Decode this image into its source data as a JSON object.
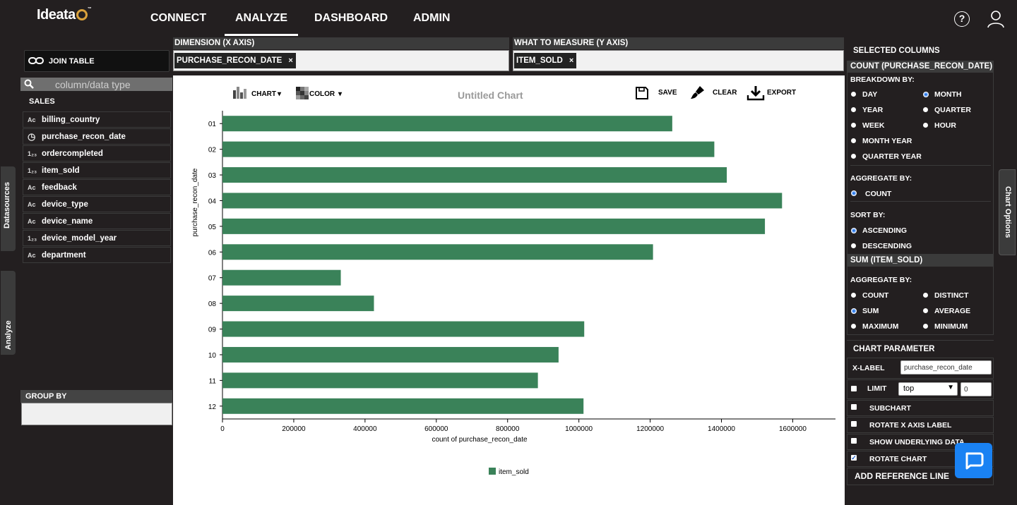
{
  "app": {
    "logo_text": "Ideata",
    "logo_mark": "™"
  },
  "nav": {
    "items": [
      "CONNECT",
      "ANALYZE",
      "DASHBOARD",
      "ADMIN"
    ],
    "active": "ANALYZE",
    "help_icon": "?",
    "help_icon_name": "help-circle-icon",
    "user_icon_name": "user-icon"
  },
  "sidebar": {
    "join_table_label": "JOIN TABLE",
    "search_placeholder": "column/data type",
    "table_name": "SALES",
    "columns": [
      {
        "name": "billing_country",
        "type": "text"
      },
      {
        "name": "purchase_recon_date",
        "type": "date"
      },
      {
        "name": "ordercompleted",
        "type": "number"
      },
      {
        "name": "item_sold",
        "type": "number"
      },
      {
        "name": "feedback",
        "type": "text"
      },
      {
        "name": "device_type",
        "type": "text"
      },
      {
        "name": "device_name",
        "type": "text"
      },
      {
        "name": "device_model_year",
        "type": "number"
      },
      {
        "name": "department",
        "type": "text"
      }
    ],
    "tabs": {
      "datasources": "Datasources",
      "analyze": "Analyze"
    },
    "group_by_label": "GROUP BY"
  },
  "dimension": {
    "header": "DIMENSION (X AXIS)",
    "chip": "PURCHASE_RECON_DATE",
    "chip_remove": "×"
  },
  "measure": {
    "header": "WHAT TO MEASURE (Y AXIS)",
    "chip": "ITEM_SOLD",
    "chip_remove": "×"
  },
  "toolbar": {
    "chart_label": "CHART",
    "color_label": "COLOR",
    "save_label": "SAVE",
    "clear_label": "CLEAR",
    "export_label": "EXPORT"
  },
  "chart_title": "Untitled Chart",
  "chart_data": {
    "type": "bar",
    "orientation": "horizontal",
    "categories": [
      "01",
      "02",
      "03",
      "04",
      "05",
      "06",
      "07",
      "08",
      "09",
      "10",
      "11",
      "12"
    ],
    "series": [
      {
        "name": "item_sold",
        "values": [
          1262000,
          1380000,
          1415000,
          1570000,
          1522000,
          1208000,
          332000,
          425000,
          1015000,
          943000,
          885000,
          1013000
        ],
        "color": "#3a8259"
      }
    ],
    "xlabel": "count of purchase_recon_date",
    "ylabel": "purchase_recon_date",
    "xlim": [
      0,
      1720000
    ],
    "x_ticks": [
      0,
      200000,
      400000,
      600000,
      800000,
      1000000,
      1200000,
      1400000,
      1600000
    ],
    "x_tick_labels": [
      "0",
      "200000",
      "400000",
      "600000",
      "800000",
      "1000000",
      "1200000",
      "1400000",
      "1600000"
    ],
    "grid": false,
    "legend": "bottom-center"
  },
  "right_panel": {
    "selected_columns_label": "SELECTED COLUMNS",
    "count_header": "COUNT (PURCHASE_RECON_DATE)",
    "breakdown_label": "BREAKDOWN BY:",
    "breakdown_options": [
      "DAY",
      "MONTH",
      "YEAR",
      "QUARTER",
      "WEEK",
      "HOUR",
      "MONTH YEAR",
      "QUARTER YEAR"
    ],
    "breakdown_selected": "MONTH",
    "aggregate_label": "AGGREGATE BY:",
    "aggregate_count_option": "COUNT",
    "sort_label": "SORT BY:",
    "sort_options": [
      "ASCENDING",
      "DESCENDING"
    ],
    "sort_selected": "ASCENDING",
    "sum_header": "SUM (ITEM_SOLD)",
    "sum_aggregate_label": "AGGREGATE BY:",
    "sum_aggregate_options": [
      "COUNT",
      "DISTINCT",
      "SUM",
      "AVERAGE",
      "MAXIMUM",
      "MINIMUM"
    ],
    "sum_aggregate_selected": "SUM",
    "chart_parameter_label": "CHART PARAMETER",
    "xlabel_label": "X-LABEL",
    "xlabel_value": "purchase_recon_date",
    "limit_label": "LIMIT",
    "limit_select": "top",
    "limit_value": "0",
    "subchart_label": "SUBCHART",
    "rotate_x_label": "ROTATE X AXIS LABEL",
    "show_underlying_label": "SHOW UNDERLYING DATA",
    "rotate_chart_label": "ROTATE CHART",
    "rotate_chart_checked": true,
    "add_reference_label": "ADD REFERENCE LINE",
    "chart_options_tab": "Chart Options"
  }
}
